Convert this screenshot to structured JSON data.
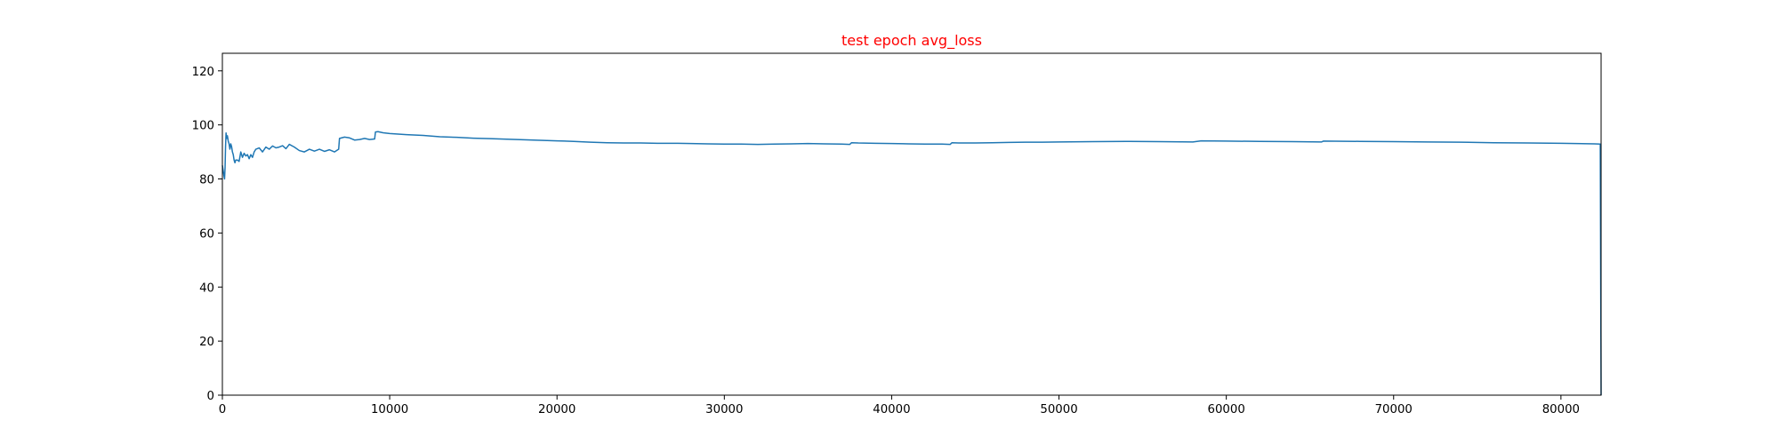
{
  "chart_data": {
    "type": "line",
    "title": "test epoch avg_loss",
    "title_color": "#ff0000",
    "line_color": "#1f77b4",
    "xlabel": "",
    "ylabel": "",
    "xlim": [
      0,
      82400
    ],
    "ylim": [
      0,
      126.5
    ],
    "x_ticks": [
      0,
      10000,
      20000,
      30000,
      40000,
      50000,
      60000,
      70000,
      80000
    ],
    "y_ticks": [
      0,
      20,
      40,
      60,
      80,
      100,
      120
    ],
    "grid": false,
    "legend": "none",
    "series": [
      {
        "x": [
          0,
          100,
          130,
          160,
          190,
          220,
          260,
          300,
          350,
          400,
          450,
          500,
          550,
          600,
          650,
          700,
          750,
          800,
          900,
          1000,
          1100,
          1200,
          1300,
          1400,
          1500,
          1600,
          1700,
          1800,
          1900,
          2000,
          2200,
          2400,
          2600,
          2800,
          3000,
          3200,
          3400,
          3600,
          3800,
          4000,
          4300,
          4600,
          4900,
          5200,
          5500,
          5800,
          6100,
          6400,
          6700,
          6950,
          7000,
          7300,
          7600,
          7900,
          8200,
          8500,
          8800,
          9100,
          9150,
          9300,
          9600,
          10000,
          10500,
          11000,
          12000,
          13000,
          14000,
          15000,
          16000,
          17000,
          18000,
          19000,
          20000,
          21000,
          22000,
          23000,
          24000,
          25000,
          26000,
          27000,
          28000,
          29000,
          30000,
          31000,
          32000,
          33000,
          34000,
          35000,
          36000,
          37000,
          37500,
          37600,
          38000,
          39000,
          40000,
          41000,
          42000,
          43000,
          43500,
          43600,
          44000,
          45000,
          46000,
          47000,
          48000,
          49000,
          50000,
          52000,
          54000,
          56000,
          58000,
          58500,
          60000,
          62000,
          64000,
          65700,
          65800,
          68000,
          70000,
          72000,
          74000,
          76000,
          78000,
          80000,
          82000,
          82350,
          82400
        ],
        "y": [
          85,
          81,
          80,
          84,
          92,
          97,
          95,
          96,
          94,
          93,
          91,
          93,
          92,
          90,
          89,
          87,
          86,
          87,
          87,
          86.5,
          90,
          88,
          89.5,
          88.5,
          89,
          87.5,
          89,
          88,
          90,
          91,
          91.5,
          90,
          91.8,
          91,
          92.2,
          91.5,
          91.8,
          92.3,
          91.2,
          92.8,
          91.8,
          90.5,
          90,
          91,
          90.3,
          91,
          90.2,
          90.8,
          90,
          91,
          95,
          95.5,
          95.2,
          94.4,
          94.6,
          95,
          94.6,
          94.8,
          97.4,
          97.5,
          97.1,
          96.8,
          96.6,
          96.4,
          96.1,
          95.6,
          95.4,
          95.1,
          94.9,
          94.7,
          94.5,
          94.3,
          94.1,
          93.9,
          93.6,
          93.4,
          93.3,
          93.3,
          93.2,
          93.2,
          93.1,
          93.0,
          92.9,
          92.9,
          92.8,
          92.9,
          93.0,
          93.1,
          93.0,
          92.9,
          92.8,
          93.4,
          93.3,
          93.2,
          93.1,
          93.0,
          92.9,
          92.9,
          92.8,
          93.4,
          93.3,
          93.3,
          93.4,
          93.5,
          93.6,
          93.6,
          93.7,
          93.8,
          93.9,
          93.8,
          93.7,
          94.1,
          94.0,
          93.9,
          93.8,
          93.7,
          94.0,
          93.9,
          93.8,
          93.7,
          93.6,
          93.4,
          93.3,
          93.2,
          93.0,
          92.9,
          0
        ]
      }
    ]
  }
}
